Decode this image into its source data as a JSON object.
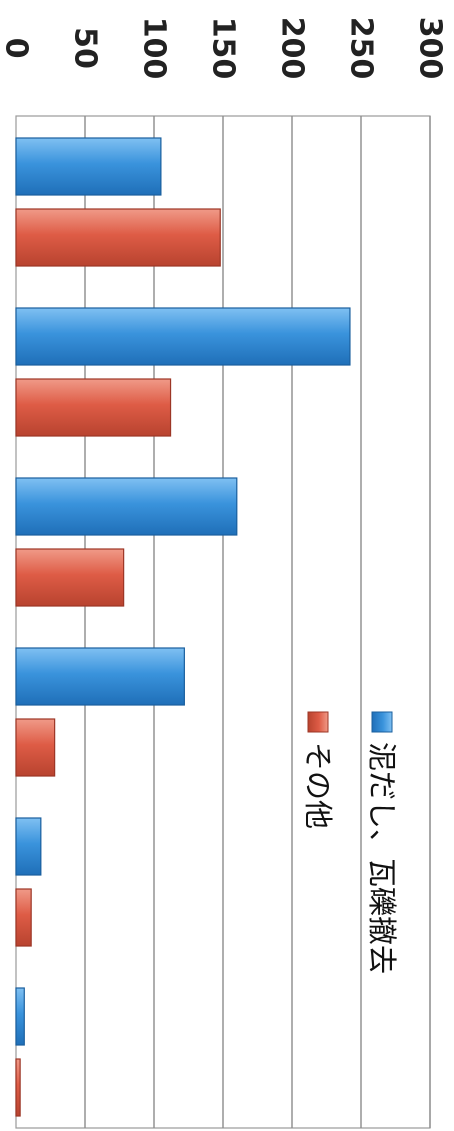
{
  "chart_data": {
    "type": "bar",
    "orientation": "horizontal",
    "rotated_view": "90deg clockwise",
    "title": "",
    "xlabel": "",
    "ylabel": "",
    "xlim": [
      0,
      300
    ],
    "ticks": [
      0,
      50,
      100,
      150,
      200,
      250,
      300
    ],
    "tick_labels": [
      "0",
      "50",
      "100",
      "150",
      "200",
      "250",
      "300"
    ],
    "grid": true,
    "legend_position": "right",
    "group_count": 6,
    "series": [
      {
        "name": "泥だし、瓦礫撤去",
        "color": "#2e86d6",
        "values": [
          105,
          242,
          160,
          122,
          18,
          6
        ]
      },
      {
        "name": "その他",
        "color": "#d9553f",
        "values": [
          148,
          112,
          78,
          28,
          11,
          3
        ]
      }
    ]
  }
}
